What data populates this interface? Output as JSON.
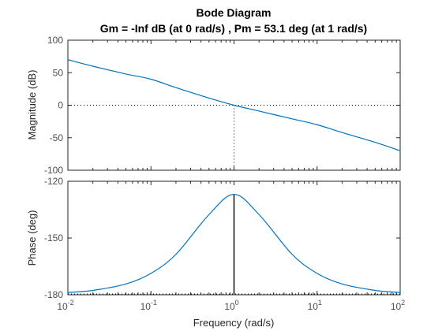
{
  "chart_data": [
    {
      "type": "line",
      "panel": "magnitude",
      "title": "Bode Diagram",
      "subtitle": "Gm = -Inf dB (at 0 rad/s) ,  Pm = 53.1 deg (at 1 rad/s)",
      "xlabel": "",
      "ylabel": "Magnitude (dB)",
      "xscale": "log",
      "xlim": [
        0.01,
        100
      ],
      "ylim": [
        -100,
        100
      ],
      "yticks": [
        "100",
        "50",
        "0",
        "-50",
        "-100"
      ],
      "yticks_values": [
        100,
        50,
        0,
        -50,
        -100
      ],
      "x": [
        0.01,
        0.02,
        0.05,
        0.1,
        0.2,
        0.5,
        1,
        2,
        5,
        10,
        20,
        50,
        100
      ],
      "y": [
        70,
        60,
        48,
        40,
        27,
        11,
        0,
        -9,
        -21,
        -30,
        -42,
        -57,
        -70
      ],
      "reference_line_y": 0,
      "marker_x": 1,
      "color": "#0072bd"
    },
    {
      "type": "line",
      "panel": "phase",
      "title": "",
      "xlabel": "Frequency  (rad/s)",
      "ylabel": "Phase (deg)",
      "xscale": "log",
      "xlim": [
        0.01,
        100
      ],
      "ylim": [
        -180,
        -120
      ],
      "yticks": [
        "-120",
        "-150",
        "-180"
      ],
      "yticks_values": [
        -120,
        -150,
        -180
      ],
      "xticks_base": [
        "10",
        "10",
        "10",
        "10",
        "10"
      ],
      "xticks_exp": [
        "-2",
        "-1",
        "0",
        "1",
        "2"
      ],
      "xticks_values": [
        0.01,
        0.1,
        1,
        10,
        100
      ],
      "x": [
        0.01,
        0.02,
        0.05,
        0.1,
        0.2,
        0.5,
        1,
        2,
        5,
        10,
        20,
        50,
        100
      ],
      "y": [
        -178.8,
        -177.7,
        -174.3,
        -168.7,
        -158.6,
        -137.6,
        -126.9,
        -137.6,
        -158.6,
        -168.7,
        -174.3,
        -177.7,
        -178.8
      ],
      "reference_line_y": -180,
      "marker_x": 1,
      "color": "#0072bd"
    }
  ]
}
